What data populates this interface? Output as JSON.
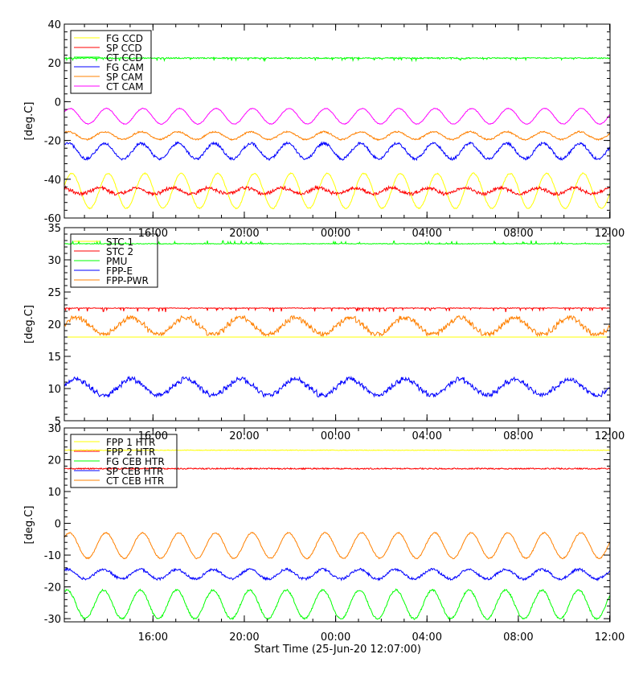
{
  "xlabel": "Start Time (25-Jun-20 12:07:00)",
  "time_ticks": [
    "16:00",
    "20:00",
    "00:00",
    "04:00",
    "08:00",
    "12:00"
  ],
  "chart_data": [
    {
      "type": "line",
      "title": "",
      "xlabel": "",
      "ylabel": "[deg.C]",
      "x_unit": "hours since start",
      "xlim": [
        0,
        23.9
      ],
      "ylim": [
        -60,
        40
      ],
      "yticks": [
        -60,
        -40,
        -20,
        0,
        20,
        40
      ],
      "legend_position": "top-left",
      "series": [
        {
          "name": "FG CCD",
          "color": "#ffff00",
          "base": -46,
          "amp": 9,
          "period": 1.6,
          "phase": 0.3,
          "noise": 0.3
        },
        {
          "name": "SP CCD",
          "color": "#ff0000",
          "base": -46,
          "amp": 1.5,
          "period": 1.6,
          "phase": 1.8,
          "noise": 0.8,
          "step": 1
        },
        {
          "name": "CT CCD",
          "color": "#00ff00",
          "base": 22.5,
          "amp": 0,
          "period": 1.6,
          "phase": 0,
          "noise": 0.3,
          "spikes": -1.5
        },
        {
          "name": "FG CAM",
          "color": "#0000ff",
          "base": -25.5,
          "amp": 4,
          "period": 1.6,
          "phase": 0.9,
          "noise": 0.7
        },
        {
          "name": "SP CAM",
          "color": "#ff8000",
          "base": -17.5,
          "amp": 2,
          "period": 1.6,
          "phase": 0.9,
          "noise": 0.4
        },
        {
          "name": "CT CAM",
          "color": "#ff00ff",
          "base": -7.5,
          "amp": 4,
          "period": 1.6,
          "phase": 0.6,
          "noise": 0.2
        }
      ]
    },
    {
      "type": "line",
      "title": "",
      "xlabel": "",
      "ylabel": "[deg.C]",
      "x_unit": "hours since start",
      "xlim": [
        0,
        23.9
      ],
      "ylim": [
        5,
        35
      ],
      "yticks": [
        5,
        10,
        15,
        20,
        25,
        30,
        35
      ],
      "legend_position": "top-left",
      "series": [
        {
          "name": "STC 1",
          "color": "#ffff00",
          "base": 18,
          "amp": 0,
          "period": 2.4,
          "phase": 0,
          "noise": 0
        },
        {
          "name": "STC 2",
          "color": "#ff0000",
          "base": 22.5,
          "amp": 0,
          "period": 2.4,
          "phase": 0,
          "noise": 0.05,
          "spikes": -0.6
        },
        {
          "name": "PMU",
          "color": "#00ff00",
          "base": 32.5,
          "amp": 0,
          "period": 2.4,
          "phase": 0,
          "noise": 0.05,
          "spikes": 0.5
        },
        {
          "name": "FPP-E",
          "color": "#0000ff",
          "base": 10.2,
          "amp": 1.2,
          "period": 2.4,
          "phase": 0.2,
          "noise": 0.3,
          "step": 1
        },
        {
          "name": "FPP-PWR",
          "color": "#ff8000",
          "base": 19.7,
          "amp": 1.3,
          "period": 2.4,
          "phase": 0.2,
          "noise": 0.3,
          "step": 1
        }
      ]
    },
    {
      "type": "line",
      "title": "",
      "xlabel": "Start Time (25-Jun-20 12:07:00)",
      "ylabel": "[deg.C]",
      "x_unit": "hours since start",
      "xlim": [
        0,
        23.9
      ],
      "ylim": [
        -31,
        30
      ],
      "yticks": [
        -30,
        -20,
        -10,
        0,
        10,
        20,
        30
      ],
      "legend_position": "top-left",
      "series": [
        {
          "name": "FPP 1 HTR",
          "color": "#ffff00",
          "base": 23,
          "amp": 0,
          "period": 1.6,
          "phase": 0,
          "noise": 0.1
        },
        {
          "name": "FPP 2 HTR",
          "color": "#ff0000",
          "base": 17.2,
          "amp": 0,
          "period": 1.6,
          "phase": 0,
          "noise": 0.2
        },
        {
          "name": "FG CEB HTR",
          "color": "#00ff00",
          "base": -25.5,
          "amp": 4.5,
          "period": 1.6,
          "phase": 1.1,
          "noise": 0.3
        },
        {
          "name": "SP CEB HTR",
          "color": "#0000ff",
          "base": -16,
          "amp": 1.5,
          "period": 1.6,
          "phase": 1.1,
          "noise": 0.4
        },
        {
          "name": "CT CEB HTR",
          "color": "#ff8000",
          "base": -7,
          "amp": 4,
          "period": 1.6,
          "phase": 0.7,
          "noise": 0.2
        }
      ]
    }
  ]
}
